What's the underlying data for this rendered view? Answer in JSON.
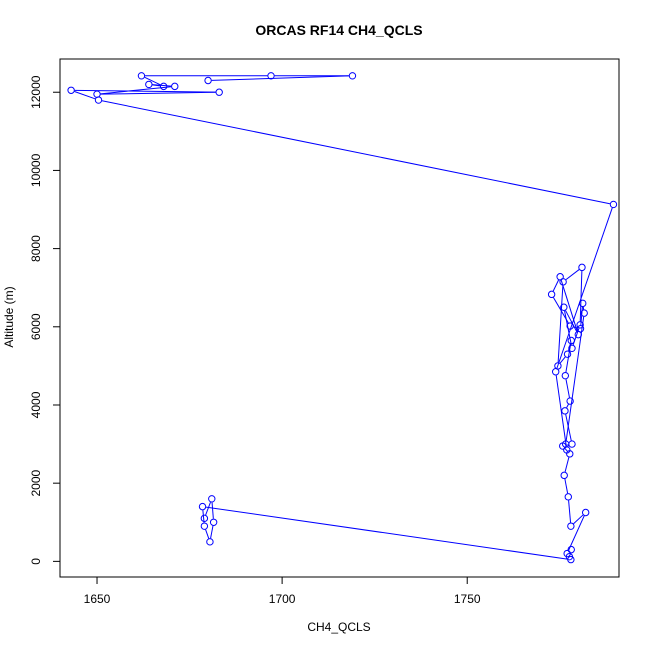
{
  "chart_data": {
    "type": "line",
    "title": "ORCAS RF14 CH4_QCLS",
    "xlabel": "CH4_QCLS",
    "ylabel": "Altitude (m)",
    "xlim": [
      1640,
      1791
    ],
    "ylim": [
      -400,
      12850
    ],
    "x_ticks": [
      1650,
      1700,
      1750
    ],
    "y_ticks": [
      0,
      2000,
      4000,
      6000,
      8000,
      10000,
      12000
    ],
    "x_tick_labels": [
      "1650",
      "1700",
      "1750"
    ],
    "y_tick_labels": [
      "0",
      "2000",
      "4000",
      "6000",
      "8000",
      "10000",
      "12000"
    ],
    "grid": false,
    "marker": "open-circle",
    "series_color": "#0000ff",
    "series": [
      {
        "x": [
          1679.0,
          1681.0,
          1681.5,
          1680.5,
          1679.0,
          1678.5,
          1778.0,
          1777.6,
          1778.1,
          1777.0,
          1782.0,
          1778.0,
          1777.3,
          1776.2,
          1777.7,
          1775.8,
          1778.3,
          1776.4,
          1777.8,
          1776.5,
          1778.1,
          1777.1,
          1774.5,
          1775.9,
          1781.0,
          1780.5,
          1778.3,
          1776.1,
          1780.0,
          1775.1,
          1772.8,
          1777.8,
          1780.6,
          1781.2,
          1781.6,
          1776.6,
          1776.9,
          1773.9,
          1789.5,
          1650.4,
          1643.0,
          1683.0,
          1650.0,
          1671.0,
          1664.0,
          1668.0,
          1662.0,
          1697.0,
          1719.0,
          1680.0
        ],
        "y": [
          1100,
          1600,
          1000,
          500,
          900,
          1400,
          45,
          120,
          300,
          200,
          1250,
          900,
          1650,
          2200,
          2750,
          2950,
          3000,
          3850,
          4100,
          4750,
          5650,
          5300,
          5000,
          7150,
          7520,
          6050,
          5450,
          6500,
          5800,
          7280,
          6830,
          6020,
          5950,
          6600,
          6350,
          3000,
          2850,
          4850,
          9130,
          11800,
          12050,
          12000,
          11950,
          12150,
          12200,
          12150,
          12420,
          12420,
          12420,
          12300
        ]
      }
    ]
  }
}
